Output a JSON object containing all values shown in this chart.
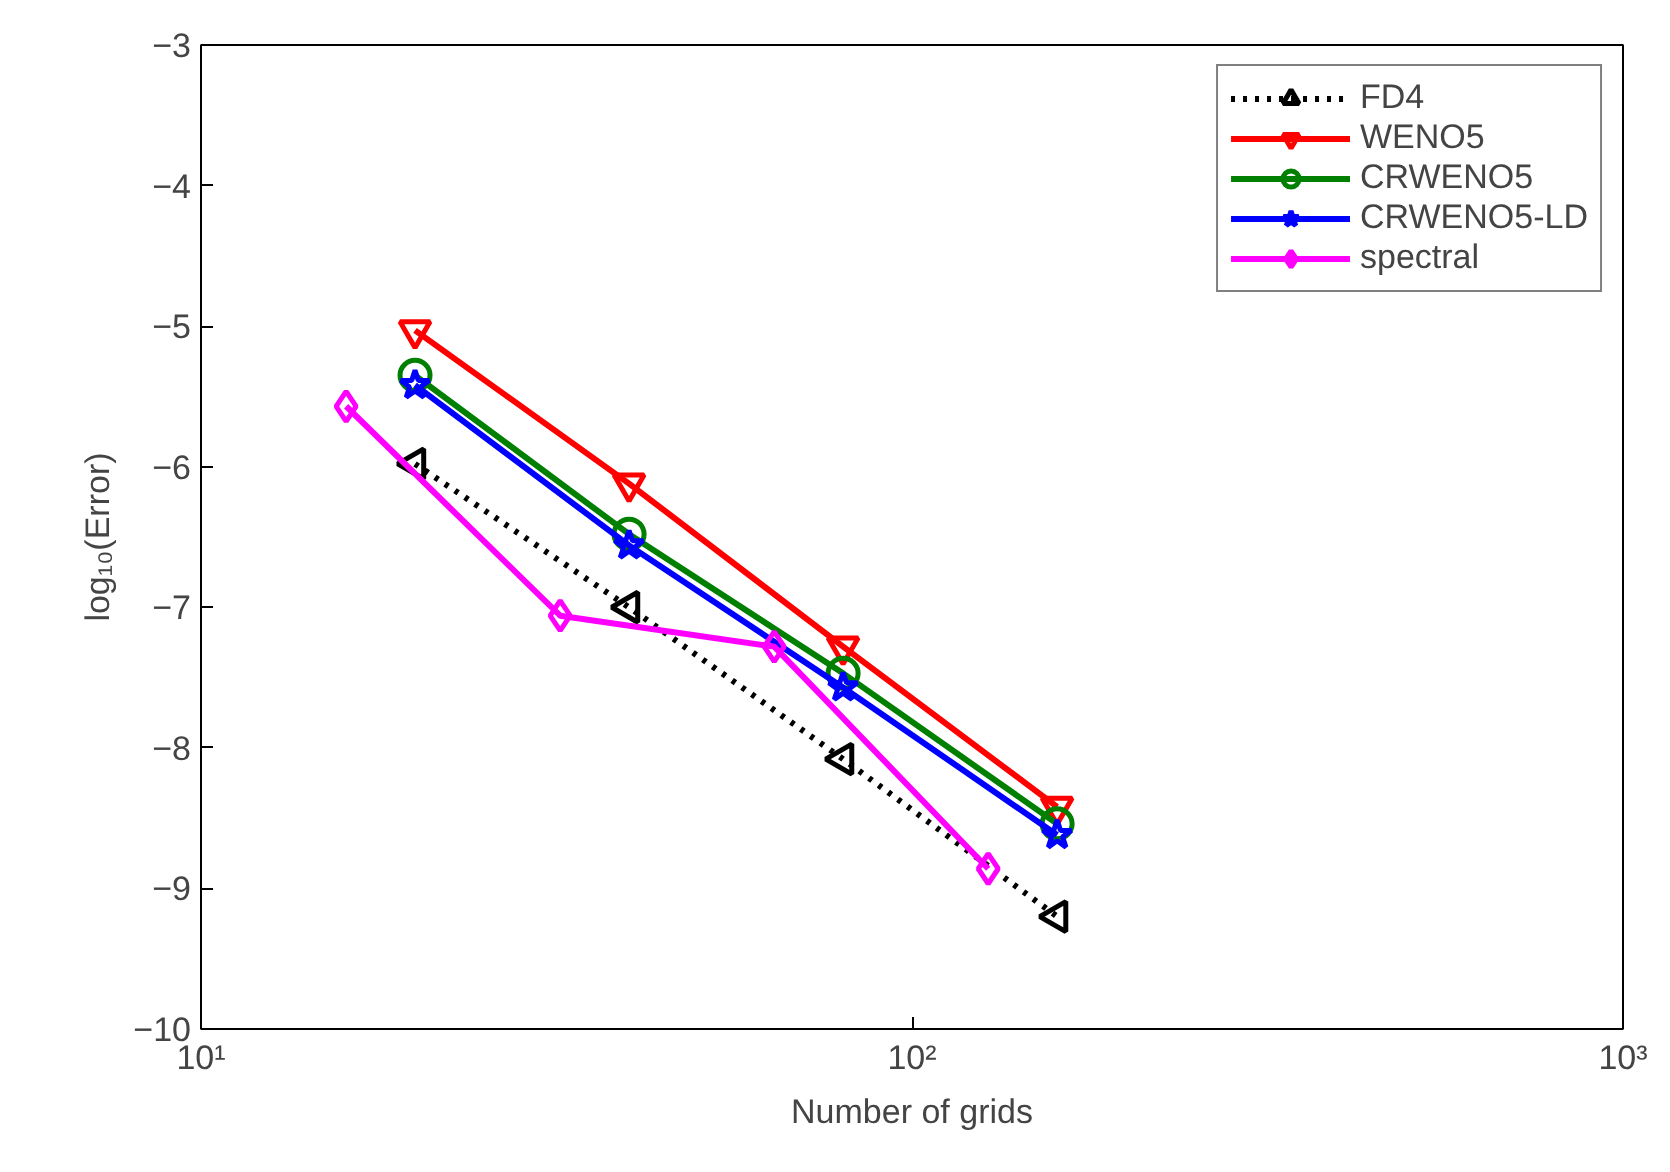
{
  "chart_data": {
    "type": "line",
    "xlabel": "Number of grids",
    "ylabel": "log₁₀(Error)",
    "log": "x",
    "xlim": [
      10,
      1000
    ],
    "xticks": [
      {
        "value": 10,
        "label": "10¹"
      },
      {
        "value": 100,
        "label": "10²"
      },
      {
        "value": 1000,
        "label": "10³"
      }
    ],
    "ylim": [
      -10,
      -3
    ],
    "yticks": [
      -10,
      -9,
      -8,
      -7,
      -6,
      -5,
      -4,
      -3
    ],
    "grid": false,
    "legend": "top right",
    "series": [
      {
        "name": "FD4",
        "color": "#000000",
        "marker": "triangle-left",
        "line_style": "dotted",
        "x": [
          20,
          40,
          80,
          160
        ],
        "values": [
          -5.98,
          -7.0,
          -8.08,
          -9.2
        ]
      },
      {
        "name": "WENO5",
        "color": "#ff0000",
        "marker": "triangle-down",
        "line_style": "solid",
        "x": [
          20,
          40,
          80,
          160
        ],
        "values": [
          -5.03,
          -6.12,
          -7.28,
          -8.42
        ]
      },
      {
        "name": "CRWENO5",
        "color": "#007f00",
        "marker": "circle",
        "line_style": "solid",
        "x": [
          20,
          40,
          80,
          160
        ],
        "values": [
          -5.35,
          -6.48,
          -7.47,
          -8.54
        ]
      },
      {
        "name": "CRWENO5-LD",
        "color": "#0000ff",
        "marker": "star",
        "line_style": "solid",
        "x": [
          20,
          40,
          80,
          160
        ],
        "values": [
          -5.42,
          -6.56,
          -7.57,
          -8.62
        ]
      },
      {
        "name": "spectral",
        "color": "#ff00ff",
        "marker": "diamond",
        "line_style": "solid",
        "x": [
          16,
          32,
          64,
          128
        ],
        "values": [
          -5.57,
          -7.06,
          -7.28,
          -8.86
        ]
      }
    ]
  }
}
